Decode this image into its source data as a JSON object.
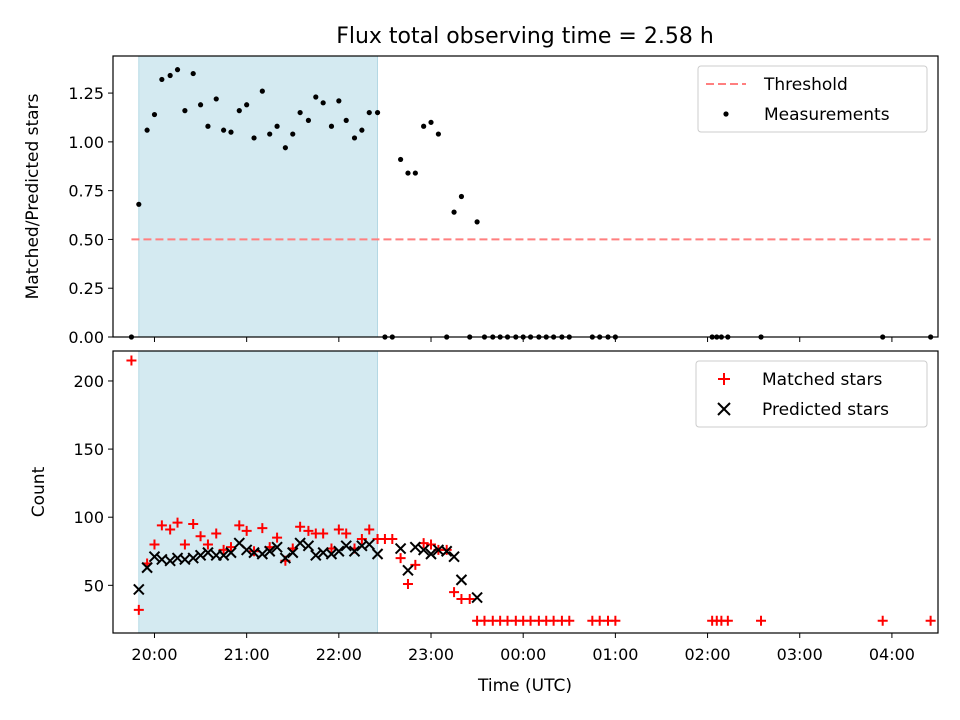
{
  "title": "Flux total observing time = 2.58 h",
  "xlabel": "Time (UTC)",
  "x_tick_labels": [
    "20:00",
    "21:00",
    "22:00",
    "23:00",
    "00:00",
    "01:00",
    "02:00",
    "03:00",
    "04:00"
  ],
  "colors": {
    "span": "#d4eaf1",
    "threshold": "#ff7f7f",
    "measurements": "#000000",
    "matched": "#ff0000",
    "predicted": "#000000"
  },
  "chart_data": [
    {
      "type": "scatter",
      "panel": "top",
      "ylabel": "Matched/Predicted stars",
      "xlim": [
        19.55,
        28.5
      ],
      "ylim": [
        0,
        1.44
      ],
      "x_axis": "time (hours UTC; values above 24 are after midnight)",
      "yticks": [
        0.0,
        0.25,
        0.5,
        0.75,
        1.0,
        1.25
      ],
      "ytick_labels": [
        "0.00",
        "0.25",
        "0.50",
        "0.75",
        "1.00",
        "1.25"
      ],
      "shaded_span": [
        19.83,
        22.42
      ],
      "threshold": {
        "name": "Threshold",
        "value": 0.5,
        "x_range": [
          19.75,
          28.42
        ]
      },
      "legend_position": "upper right",
      "legend": [
        "Threshold",
        "Measurements"
      ],
      "series": [
        {
          "name": "Measurements",
          "points": [
            [
              19.75,
              0.0
            ],
            [
              19.83,
              0.68
            ],
            [
              19.92,
              1.06
            ],
            [
              20.0,
              1.14
            ],
            [
              20.08,
              1.32
            ],
            [
              20.17,
              1.34
            ],
            [
              20.25,
              1.37
            ],
            [
              20.33,
              1.16
            ],
            [
              20.42,
              1.35
            ],
            [
              20.5,
              1.19
            ],
            [
              20.58,
              1.08
            ],
            [
              20.67,
              1.22
            ],
            [
              20.75,
              1.06
            ],
            [
              20.83,
              1.05
            ],
            [
              20.92,
              1.16
            ],
            [
              21.0,
              1.19
            ],
            [
              21.08,
              1.02
            ],
            [
              21.17,
              1.26
            ],
            [
              21.25,
              1.04
            ],
            [
              21.33,
              1.08
            ],
            [
              21.42,
              0.97
            ],
            [
              21.5,
              1.04
            ],
            [
              21.58,
              1.15
            ],
            [
              21.67,
              1.11
            ],
            [
              21.75,
              1.23
            ],
            [
              21.83,
              1.2
            ],
            [
              21.92,
              1.08
            ],
            [
              22.0,
              1.21
            ],
            [
              22.08,
              1.11
            ],
            [
              22.17,
              1.02
            ],
            [
              22.25,
              1.06
            ],
            [
              22.33,
              1.15
            ],
            [
              22.42,
              1.15
            ],
            [
              22.5,
              0.0
            ],
            [
              22.58,
              0.0
            ],
            [
              22.67,
              0.91
            ],
            [
              22.75,
              0.84
            ],
            [
              22.83,
              0.84
            ],
            [
              22.92,
              1.08
            ],
            [
              23.0,
              1.1
            ],
            [
              23.08,
              1.04
            ],
            [
              23.17,
              0.0
            ],
            [
              23.25,
              0.64
            ],
            [
              23.33,
              0.72
            ],
            [
              23.42,
              0.0
            ],
            [
              23.5,
              0.59
            ],
            [
              23.58,
              0.0
            ],
            [
              23.67,
              0.0
            ],
            [
              23.75,
              0.0
            ],
            [
              23.83,
              0.0
            ],
            [
              23.92,
              0.0
            ],
            [
              24.0,
              0.0
            ],
            [
              24.08,
              0.0
            ],
            [
              24.17,
              0.0
            ],
            [
              24.25,
              0.0
            ],
            [
              24.33,
              0.0
            ],
            [
              24.42,
              0.0
            ],
            [
              24.5,
              0.0
            ],
            [
              24.75,
              0.0
            ],
            [
              24.83,
              0.0
            ],
            [
              24.92,
              0.0
            ],
            [
              25.0,
              0.0
            ],
            [
              26.05,
              0.0
            ],
            [
              26.1,
              0.0
            ],
            [
              26.15,
              0.0
            ],
            [
              26.22,
              0.0
            ],
            [
              26.58,
              0.0
            ],
            [
              27.9,
              0.0
            ],
            [
              28.42,
              0.0
            ]
          ]
        }
      ]
    },
    {
      "type": "scatter",
      "panel": "bottom",
      "ylabel": "Count",
      "xlim": [
        19.55,
        28.5
      ],
      "ylim": [
        15,
        222
      ],
      "x_axis": "time (hours UTC; values above 24 are after midnight)",
      "yticks": [
        50,
        100,
        150,
        200
      ],
      "ytick_labels": [
        "50",
        "100",
        "150",
        "200"
      ],
      "shaded_span": [
        19.83,
        22.42
      ],
      "legend_position": "upper right",
      "legend": [
        "Matched stars",
        "Predicted stars"
      ],
      "series": [
        {
          "name": "Matched stars",
          "marker": "+",
          "points": [
            [
              19.75,
              215
            ],
            [
              19.83,
              32
            ],
            [
              19.92,
              66
            ],
            [
              20.0,
              80
            ],
            [
              20.08,
              94
            ],
            [
              20.17,
              91
            ],
            [
              20.25,
              96
            ],
            [
              20.33,
              80
            ],
            [
              20.42,
              95
            ],
            [
              20.5,
              86
            ],
            [
              20.58,
              80
            ],
            [
              20.67,
              88
            ],
            [
              20.75,
              76
            ],
            [
              20.83,
              78
            ],
            [
              20.92,
              94
            ],
            [
              21.0,
              90
            ],
            [
              21.08,
              75
            ],
            [
              21.17,
              92
            ],
            [
              21.25,
              78
            ],
            [
              21.33,
              85
            ],
            [
              21.42,
              68
            ],
            [
              21.5,
              77
            ],
            [
              21.58,
              93
            ],
            [
              21.67,
              90
            ],
            [
              21.75,
              88
            ],
            [
              21.83,
              88
            ],
            [
              21.92,
              77
            ],
            [
              22.0,
              91
            ],
            [
              22.08,
              88
            ],
            [
              22.17,
              77
            ],
            [
              22.25,
              84
            ],
            [
              22.33,
              91
            ],
            [
              22.42,
              84
            ],
            [
              22.5,
              84
            ],
            [
              22.58,
              84
            ],
            [
              22.67,
              70
            ],
            [
              22.75,
              51
            ],
            [
              22.83,
              65
            ],
            [
              22.92,
              81
            ],
            [
              23.0,
              80
            ],
            [
              23.08,
              76
            ],
            [
              23.17,
              76
            ],
            [
              23.25,
              45
            ],
            [
              23.33,
              40
            ],
            [
              23.42,
              40
            ],
            [
              23.5,
              24
            ],
            [
              23.58,
              24
            ],
            [
              23.67,
              24
            ],
            [
              23.75,
              24
            ],
            [
              23.83,
              24
            ],
            [
              23.92,
              24
            ],
            [
              24.0,
              24
            ],
            [
              24.08,
              24
            ],
            [
              24.17,
              24
            ],
            [
              24.25,
              24
            ],
            [
              24.33,
              24
            ],
            [
              24.42,
              24
            ],
            [
              24.5,
              24
            ],
            [
              24.75,
              24
            ],
            [
              24.83,
              24
            ],
            [
              24.92,
              24
            ],
            [
              25.0,
              24
            ],
            [
              26.05,
              24
            ],
            [
              26.1,
              24
            ],
            [
              26.15,
              24
            ],
            [
              26.22,
              24
            ],
            [
              26.58,
              24
            ],
            [
              27.9,
              24
            ],
            [
              28.42,
              24
            ]
          ]
        },
        {
          "name": "Predicted stars",
          "marker": "x",
          "points": [
            [
              19.83,
              47
            ],
            [
              19.92,
              63
            ],
            [
              20.0,
              71
            ],
            [
              20.08,
              69
            ],
            [
              20.17,
              68
            ],
            [
              20.25,
              70
            ],
            [
              20.33,
              69
            ],
            [
              20.42,
              70
            ],
            [
              20.5,
              72
            ],
            [
              20.58,
              74
            ],
            [
              20.67,
              72
            ],
            [
              20.75,
              72
            ],
            [
              20.83,
              74
            ],
            [
              20.92,
              81
            ],
            [
              21.0,
              76
            ],
            [
              21.08,
              74
            ],
            [
              21.17,
              73
            ],
            [
              21.25,
              75
            ],
            [
              21.33,
              78
            ],
            [
              21.42,
              70
            ],
            [
              21.5,
              74
            ],
            [
              21.58,
              81
            ],
            [
              21.67,
              79
            ],
            [
              21.75,
              72
            ],
            [
              21.83,
              74
            ],
            [
              21.92,
              73
            ],
            [
              22.0,
              75
            ],
            [
              22.08,
              79
            ],
            [
              22.17,
              75
            ],
            [
              22.25,
              79
            ],
            [
              22.33,
              80
            ],
            [
              22.42,
              73
            ],
            [
              22.67,
              77
            ],
            [
              22.75,
              61
            ],
            [
              22.83,
              78
            ],
            [
              22.92,
              76
            ],
            [
              23.0,
              73
            ],
            [
              23.08,
              76
            ],
            [
              23.17,
              75
            ],
            [
              23.25,
              71
            ],
            [
              23.33,
              54
            ],
            [
              23.5,
              41
            ]
          ]
        }
      ]
    }
  ]
}
